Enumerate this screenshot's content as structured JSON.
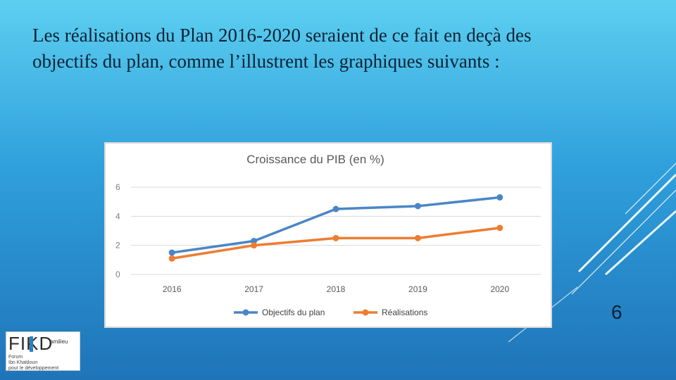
{
  "title_lines": [
    "Les réalisations du Plan 2016-2020 seraient de ce fait en deçà des",
    "objectifs du plan, comme l’illustrent les graphiques  suivants :"
  ],
  "page_number": "6",
  "logo": {
    "mark": "FIKD",
    "tag": "amilieu",
    "lines": [
      "Forum",
      "Ibn Khaldoun",
      "pour le développement"
    ]
  },
  "colors": {
    "series_1": "#4a86c6",
    "series_2": "#ed7d31",
    "gridline": "#d9d9d9"
  },
  "chart_data": {
    "type": "line",
    "title": "Croissance du PIB (en %)",
    "categories": [
      "2016",
      "2017",
      "2018",
      "2019",
      "2020"
    ],
    "series": [
      {
        "name": "Objectifs du plan",
        "values": [
          1.5,
          2.3,
          4.5,
          4.7,
          5.3
        ]
      },
      {
        "name": "Réalisations",
        "values": [
          1.1,
          2.0,
          2.5,
          2.5,
          3.2
        ]
      }
    ],
    "xlabel": "",
    "ylabel": "",
    "ylim": [
      0,
      6
    ],
    "yticks": [
      0,
      2,
      4,
      6
    ],
    "grid": true,
    "legend": "bottom"
  }
}
